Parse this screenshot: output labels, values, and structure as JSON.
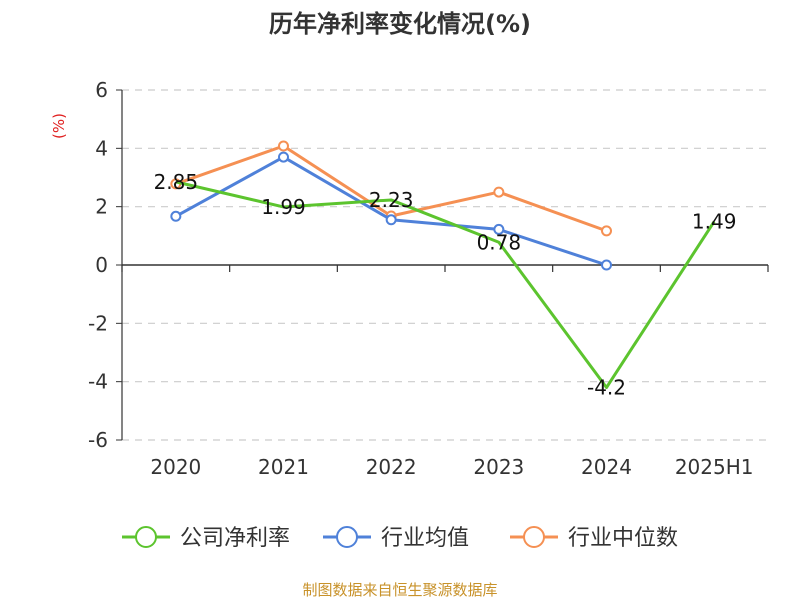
{
  "chart_data": {
    "type": "line",
    "title": "历年净利率变化情况(%)",
    "ylabel": "(%)",
    "categories": [
      "2020",
      "2021",
      "2022",
      "2023",
      "2024",
      "2025H1"
    ],
    "ylim": [
      -6,
      6
    ],
    "yticks": [
      6,
      4,
      2,
      0,
      -2,
      -4,
      -6
    ],
    "grid": true,
    "legend_position": "bottom",
    "series": [
      {
        "name": "公司净利率",
        "color": "#5cc42e",
        "values": [
          2.85,
          1.99,
          2.23,
          0.78,
          -4.2,
          1.49
        ],
        "labels": [
          "2.85",
          "1.99",
          "2.23",
          "0.78",
          "-4.2",
          "1.49"
        ]
      },
      {
        "name": "行业均值",
        "color": "#4f81d9",
        "values": [
          1.67,
          3.7,
          1.55,
          1.22,
          0.0,
          null
        ]
      },
      {
        "name": "行业中位数",
        "color": "#f59053",
        "values": [
          2.78,
          4.08,
          1.68,
          2.5,
          1.17,
          null
        ]
      }
    ]
  },
  "source_text": "制图数据来自恒生聚源数据库"
}
